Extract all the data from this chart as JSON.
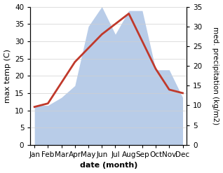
{
  "months": [
    "Jan",
    "Feb",
    "Mar",
    "Apr",
    "May",
    "Jun",
    "Jul",
    "Aug",
    "Sep",
    "Oct",
    "Nov",
    "Dec"
  ],
  "temperature": [
    11,
    12,
    18,
    24,
    28,
    32,
    35,
    38,
    30,
    22,
    16,
    15
  ],
  "precipitation": [
    10,
    10,
    12,
    15,
    30,
    35,
    28,
    34,
    34,
    19,
    19,
    12
  ],
  "temp_color": "#c0392b",
  "precip_color": "#b8cce8",
  "background_color": "#ffffff",
  "ylabel_left": "max temp (C)",
  "ylabel_right": "med. precipitation (kg/m2)",
  "xlabel": "date (month)",
  "ylim_left": [
    0,
    40
  ],
  "ylim_right": [
    0,
    35
  ],
  "label_fontsize": 8,
  "tick_fontsize": 7.5
}
